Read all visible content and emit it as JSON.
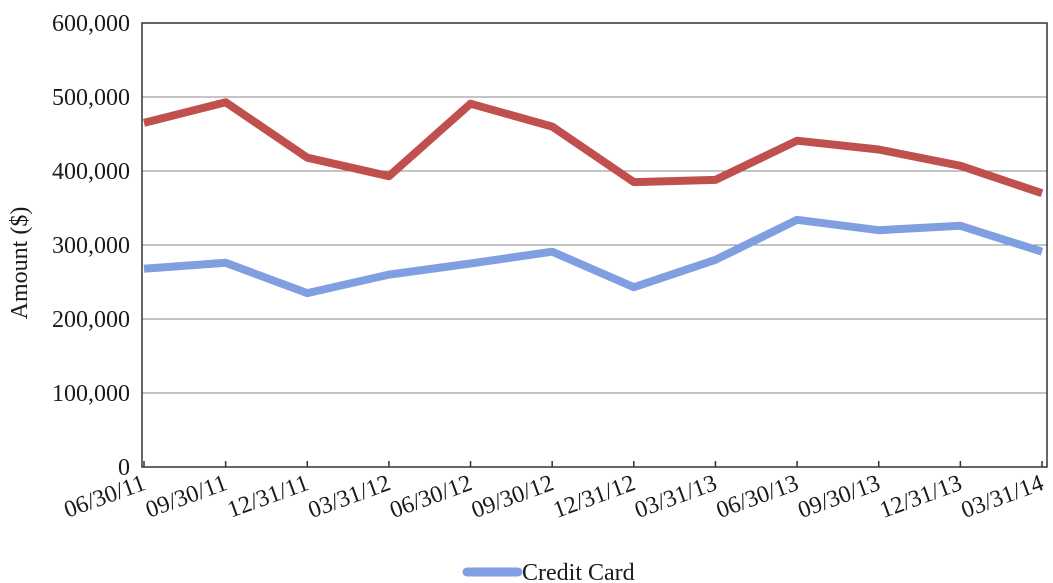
{
  "chart_data": {
    "type": "line",
    "title": "",
    "xlabel": "",
    "ylabel": "Amount ($)",
    "ylim": [
      0,
      600000
    ],
    "yticks": [
      "0",
      "100,000",
      "200,000",
      "300,000",
      "400,000",
      "500,000",
      "600,000"
    ],
    "categories": [
      "06/30/11",
      "09/30/11",
      "12/31/11",
      "03/31/12",
      "06/30/12",
      "09/30/12",
      "12/31/12",
      "03/31/13",
      "06/30/13",
      "09/30/13",
      "12/31/13",
      "03/31/14"
    ],
    "series": [
      {
        "color": "#c0504d",
        "values": [
          465000,
          493000,
          418000,
          393000,
          491000,
          460000,
          385000,
          388000,
          441000,
          429000,
          407000,
          370000
        ]
      },
      {
        "name": "Credit Card",
        "color": "#7f9fe0",
        "values": [
          268000,
          276000,
          235000,
          260000,
          275000,
          291000,
          243000,
          280000,
          334000,
          320000,
          326000,
          291000
        ]
      }
    ],
    "grid": true,
    "legend": "bottom-center"
  }
}
